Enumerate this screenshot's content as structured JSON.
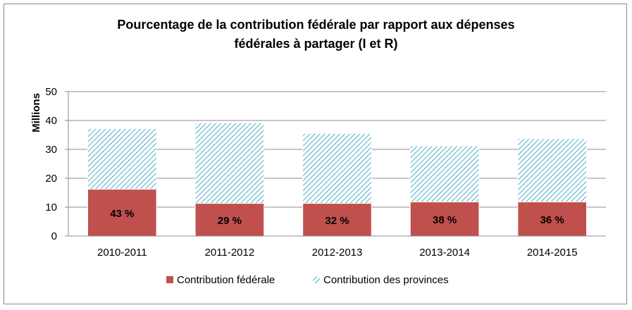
{
  "chart_data": {
    "type": "bar",
    "stacked": true,
    "title_lines": [
      "Pourcentage de la contribution fédérale par rapport aux dépenses",
      "fédérales à partager (I et R)"
    ],
    "ylabel": "Millions",
    "xlabel": "",
    "ylim": [
      0,
      50
    ],
    "yticks": [
      0,
      10,
      20,
      30,
      40,
      50
    ],
    "grid": true,
    "legend_position": "bottom",
    "categories": [
      "2010-2011",
      "2011-2012",
      "2012-2013",
      "2013-2014",
      "2014-2015"
    ],
    "series": [
      {
        "name": "Contribution fédérale",
        "color": "#c0504d",
        "values": [
          16.2,
          11.3,
          11.3,
          11.8,
          11.8
        ],
        "labels": [
          "43 %",
          "29 %",
          "32 %",
          "38 %",
          "36 %"
        ]
      },
      {
        "name": "Contribution des provinces",
        "color": "#4bacc6",
        "pattern": "diagonal-hatch",
        "values": [
          21.0,
          27.9,
          24.2,
          19.4,
          21.9
        ]
      }
    ]
  }
}
